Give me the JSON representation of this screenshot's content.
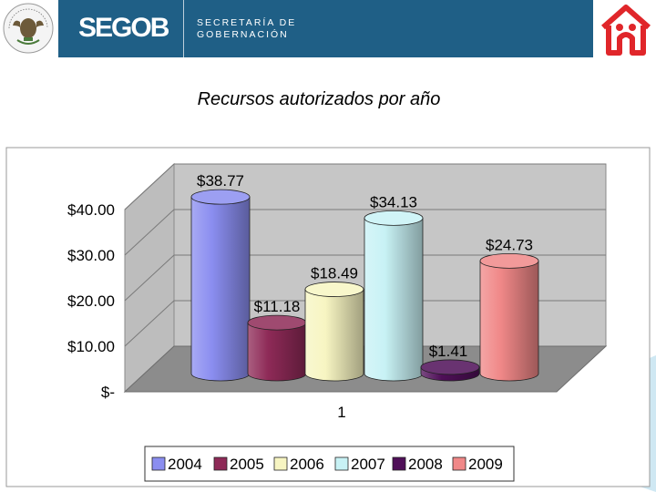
{
  "header": {
    "seal_text": "ESTADOS UNIDOS MEXICANOS",
    "logo": "SEGOB",
    "subtitle_line1": "SECRETARÍA DE",
    "subtitle_line2": "GOBERNACIÓN"
  },
  "slide": {
    "title": "Recursos autorizados por año"
  },
  "colors": {
    "2004": "#8b8ef0",
    "2005": "#8e2a57",
    "2006": "#f7f5c2",
    "2007": "#c8f2f5",
    "2008": "#4f0f58",
    "2009": "#f08888",
    "brand": "#1f5f86",
    "accent": "#e0262a"
  },
  "chart_data": {
    "type": "bar",
    "categories": [
      "1"
    ],
    "series": [
      {
        "name": "2004",
        "values": [
          38.77
        ],
        "label": "$38.77"
      },
      {
        "name": "2005",
        "values": [
          11.18
        ],
        "label": "$11.18"
      },
      {
        "name": "2006",
        "values": [
          18.49
        ],
        "label": "$18.49"
      },
      {
        "name": "2007",
        "values": [
          34.13
        ],
        "label": "$34.13"
      },
      {
        "name": "2008",
        "values": [
          1.41
        ],
        "label": "$1.41"
      },
      {
        "name": "2009",
        "values": [
          24.73
        ],
        "label": "$24.73"
      }
    ],
    "yticks": [
      {
        "value": 0,
        "label": "$-"
      },
      {
        "value": 10,
        "label": "$10.00"
      },
      {
        "value": 20,
        "label": "$20.00"
      },
      {
        "value": 30,
        "label": "$30.00"
      },
      {
        "value": 40,
        "label": "$40.00"
      }
    ],
    "ylim": [
      0,
      40
    ],
    "grid": true,
    "legend": "bottom",
    "style": "3d-cylinder"
  }
}
